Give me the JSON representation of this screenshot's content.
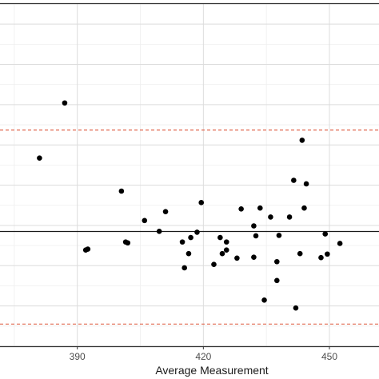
{
  "chart_data": {
    "type": "scatter",
    "title": "",
    "xlabel": "Average Measurement",
    "ylabel": "",
    "xlim": [
      371.6,
      461.8
    ],
    "ylim": [
      -0.1,
      0.75
    ],
    "x_ticks": [
      390,
      420,
      450
    ],
    "grid": true,
    "legend": "none",
    "reference_lines": [
      {
        "name": "mean difference",
        "y": 0.185,
        "style": "solid",
        "color": "#1a1a1a"
      },
      {
        "name": "upper limit of agreement",
        "y": 0.437,
        "style": "dashed",
        "color": "#e0674f"
      },
      {
        "name": "lower limit of agreement",
        "y": -0.045,
        "style": "dashed",
        "color": "#e0674f"
      }
    ],
    "series": [
      {
        "color": "#000000",
        "points": [
          {
            "x": 381,
            "y": 0.3674
          },
          {
            "x": 387,
            "y": 0.5042
          },
          {
            "x": 392,
            "y": 0.1389
          },
          {
            "x": 392.5,
            "y": 0.1411
          },
          {
            "x": 400.5,
            "y": 0.2853
          },
          {
            "x": 401.5,
            "y": 0.1589
          },
          {
            "x": 402,
            "y": 0.1567
          },
          {
            "x": 406,
            "y": 0.2121
          },
          {
            "x": 409.5,
            "y": 0.1853
          },
          {
            "x": 411,
            "y": 0.2342
          },
          {
            "x": 415,
            "y": 0.1589
          },
          {
            "x": 415.5,
            "y": 0.0947
          },
          {
            "x": 416.5,
            "y": 0.13
          },
          {
            "x": 417,
            "y": 0.17
          },
          {
            "x": 418.5,
            "y": 0.1832
          },
          {
            "x": 419.5,
            "y": 0.2568
          },
          {
            "x": 422.5,
            "y": 0.1032
          },
          {
            "x": 424,
            "y": 0.17
          },
          {
            "x": 424.5,
            "y": 0.13
          },
          {
            "x": 425.5,
            "y": 0.1389
          },
          {
            "x": 425.5,
            "y": 0.1589
          },
          {
            "x": 428,
            "y": 0.1189
          },
          {
            "x": 429,
            "y": 0.241
          },
          {
            "x": 432,
            "y": 0.1211
          },
          {
            "x": 432,
            "y": 0.1989
          },
          {
            "x": 432.5,
            "y": 0.1742
          },
          {
            "x": 433.5,
            "y": 0.2432
          },
          {
            "x": 434.5,
            "y": 0.0146
          },
          {
            "x": 436,
            "y": 0.2209
          },
          {
            "x": 437.5,
            "y": 0.11
          },
          {
            "x": 437.5,
            "y": 0.0632
          },
          {
            "x": 438,
            "y": 0.1753
          },
          {
            "x": 440.5,
            "y": 0.2209
          },
          {
            "x": 441.5,
            "y": 0.3121
          },
          {
            "x": 442,
            "y": -0.0051
          },
          {
            "x": 443,
            "y": 0.13
          },
          {
            "x": 443.5,
            "y": 0.4116
          },
          {
            "x": 444,
            "y": 0.2432
          },
          {
            "x": 444.5,
            "y": 0.3032
          },
          {
            "x": 448,
            "y": 0.12
          },
          {
            "x": 449,
            "y": 0.1789
          },
          {
            "x": 449.5,
            "y": 0.1289
          },
          {
            "x": 452.5,
            "y": 0.1553
          }
        ]
      }
    ]
  }
}
